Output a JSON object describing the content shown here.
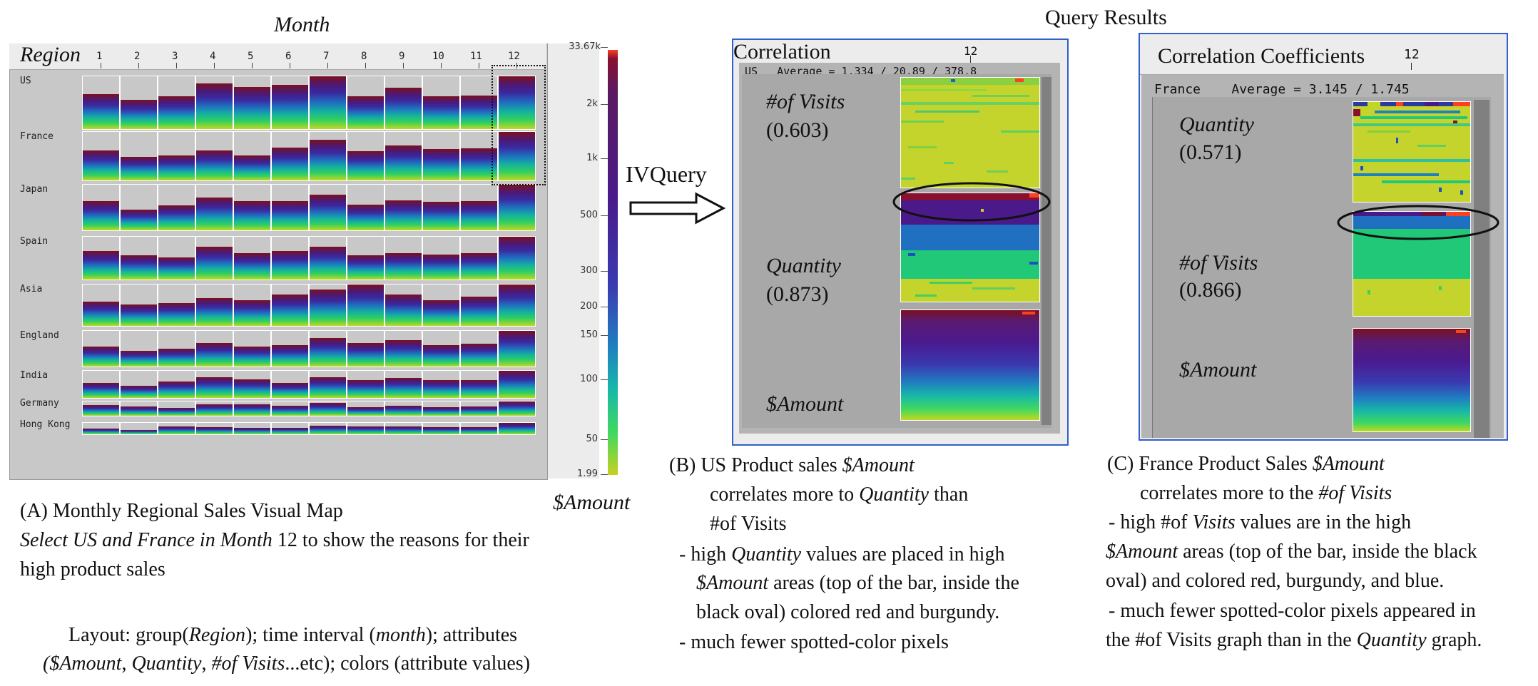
{
  "figure": {
    "month_axis_title": "Month",
    "query_results_title": "Query Results",
    "arrow_label": "IVQuery"
  },
  "panelA": {
    "corner_label": "Region",
    "months": [
      "1",
      "2",
      "3",
      "4",
      "5",
      "6",
      "7",
      "8",
      "9",
      "10",
      "11",
      "12"
    ],
    "regions": [
      "US",
      "France",
      "Japan",
      "Spain",
      "Asia",
      "England",
      "India",
      "Germany",
      "Hong Kong"
    ],
    "legend_ticks": [
      "33.67k",
      "2k",
      "1k",
      "500",
      "300",
      "200",
      "150",
      "100",
      "50",
      "1.99"
    ],
    "legend_title": "$Amount",
    "caption_title": "(A) Monthly Regional Sales Visual Map",
    "caption_italic": "Select US and France in Month",
    "caption_month": " 12 to show the reasons for their",
    "caption_line3": "high product sales",
    "layout_l1_a": "Layout: group(",
    "layout_l1_b": "Region",
    "layout_l1_c": "); time interval (",
    "layout_l1_d": "month",
    "layout_l1_e": "); attributes",
    "layout_l2_a": "($Amount",
    "layout_l2_b": ", ",
    "layout_l2_c": "Quantity",
    "layout_l2_d": ", ",
    "layout_l2_e": "#of Visits",
    "layout_l2_f": "...etc); colors (attribute values)"
  },
  "panelB": {
    "title": "Correlation",
    "month": "12",
    "stats": "US   Average = 1.334 / 20.89 / 378.8",
    "attr1": "#of Visits",
    "attr1_val": "(0.603)",
    "attr2": "Quantity",
    "attr2_val": "(0.873)",
    "attr3": "$Amount",
    "caption_l1_a": "(B) US Product sales ",
    "caption_l1_b": "$Amount",
    "caption_l2_a": "correlates more to ",
    "caption_l2_b": "Quantity",
    "caption_l2_c": " than",
    "caption_l3": "#of Visits",
    "caption_l4_a": "- high ",
    "caption_l4_b": "Quantity",
    "caption_l4_c": " values are placed in high",
    "caption_l5_a": "$Amount",
    "caption_l5_b": " areas (top of the bar, inside the",
    "caption_l6": "black oval) colored red and burgundy.",
    "caption_l7": "- much fewer spotted-color pixels"
  },
  "panelC": {
    "title": "Correlation Coefficients",
    "month": "12",
    "stats": "France    Average = 3.145 / 1.745",
    "attr1": "Quantity",
    "attr1_val": "(0.571)",
    "attr2": "#of Visits",
    "attr2_val": "(0.866)",
    "attr3": "$Amount",
    "caption_l1_a": "(C) France Product Sales ",
    "caption_l1_b": "$Amount",
    "caption_l2_a": "correlates more to the ",
    "caption_l2_b": "#of Visits",
    "caption_l3_a": "- high #of ",
    "caption_l3_b": "Visits",
    "caption_l3_c": " values are in the high",
    "caption_l4_a": "$Amount",
    "caption_l4_b": " areas (top of the bar, inside the black",
    "caption_l5": "oval) and colored red, burgundy, and blue.",
    "caption_l6": "- much fewer spotted-color pixels appeared in",
    "caption_l7_a": "the #of Visits graph than in the ",
    "caption_l7_b": "Quantity",
    "caption_l7_c": " graph."
  },
  "colors": {
    "panel_border": "#3060c8",
    "burgundy": "#7a1020",
    "purple": "#4a1a8a",
    "blue": "#1f70c0",
    "green": "#30d060",
    "yellow_green": "#c0d820",
    "highlight_red": "#ff4020"
  }
}
